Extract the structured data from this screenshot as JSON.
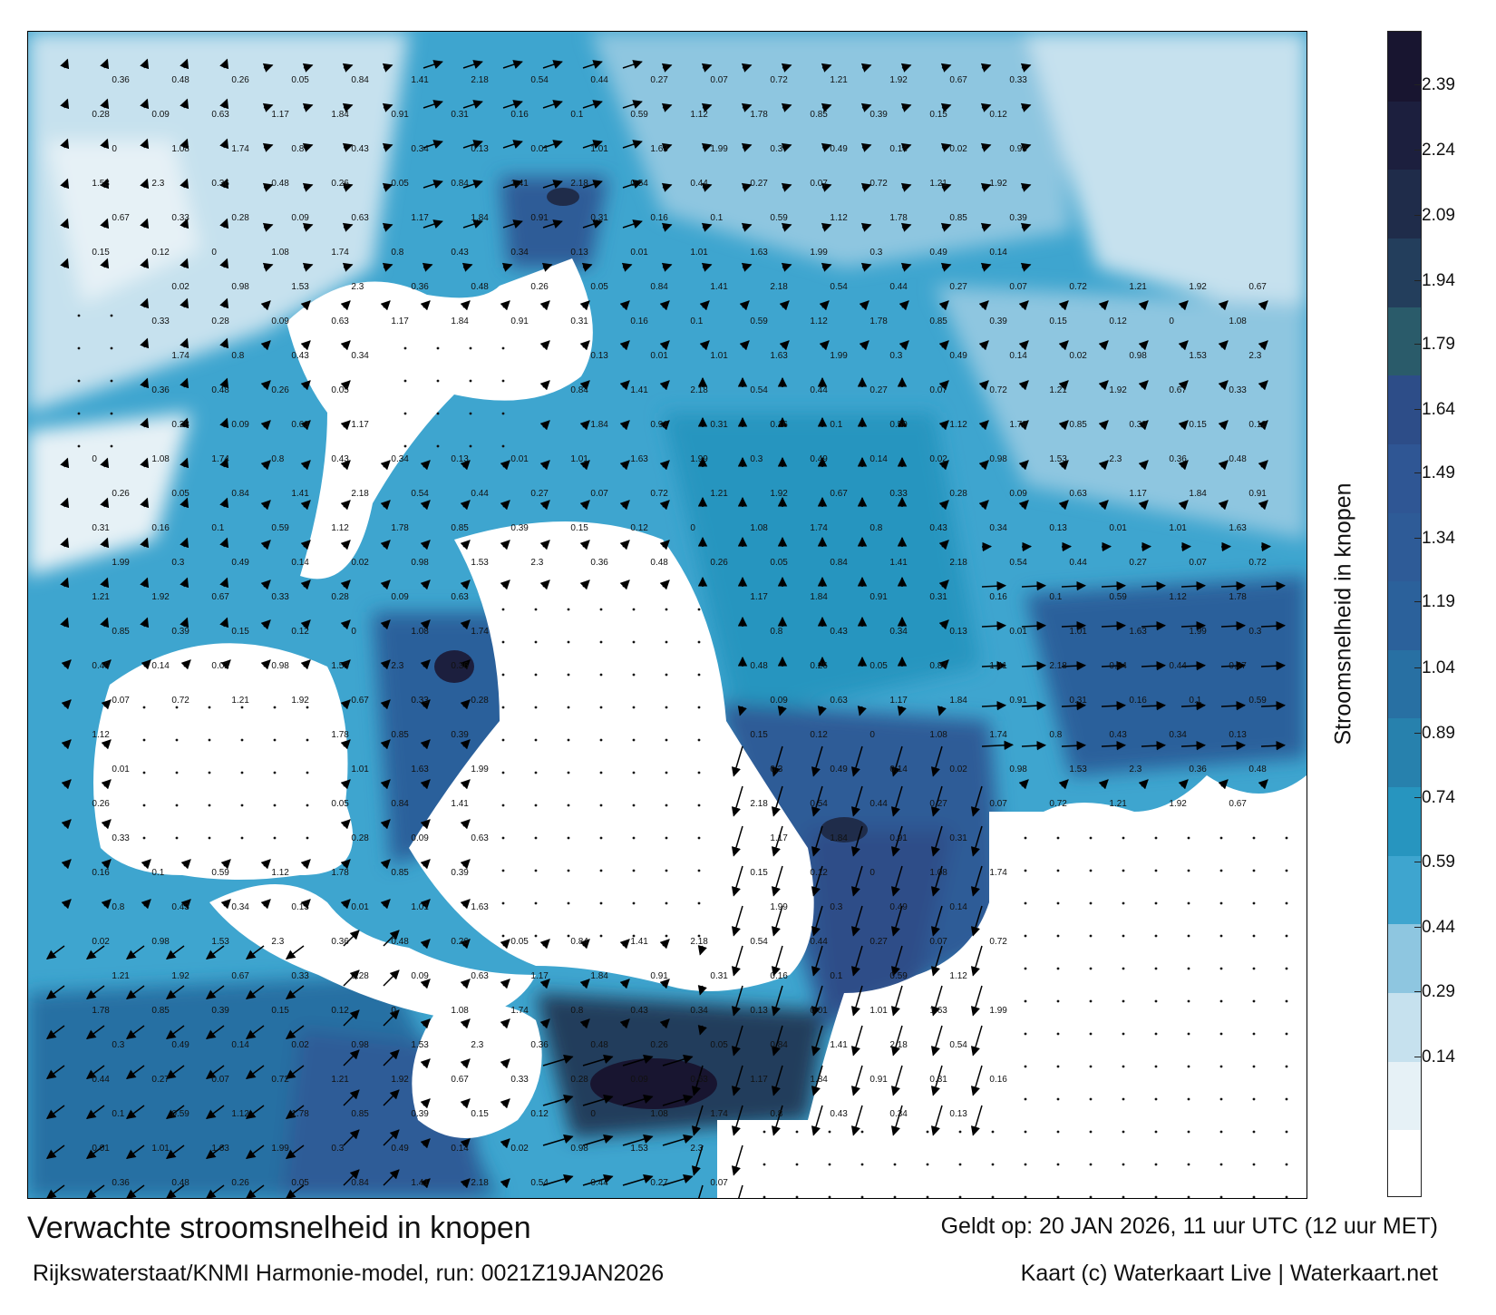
{
  "caption": {
    "title": "Verwachte stroomsnelheid in knopen",
    "model": "Rijkswaterstaat/KNMI Harmonie-model, run: 0021Z19JAN2026",
    "valid": "Geldt op: 20 JAN 2026, 11 uur UTC (12 uur MET)",
    "credit": "Kaart (c) Waterkaart Live | Waterkaart.net"
  },
  "legend": {
    "title": "Stroomsnelheid in knopen",
    "ticks": [
      "2.39",
      "2.24",
      "2.09",
      "1.94",
      "1.79",
      "1.64",
      "1.49",
      "1.34",
      "1.19",
      "1.04",
      "0.89",
      "0.74",
      "0.59",
      "0.44",
      "0.29",
      "0.14"
    ],
    "colors": {
      "c00": "#ffffff",
      "c01": "#e6f1f6",
      "c02": "#c6e1ee",
      "c03": "#8ec6e0",
      "c04": "#3ea5cf",
      "c05": "#2795bf",
      "c06": "#2781ad",
      "c07": "#2870a3",
      "c08": "#2b619b",
      "c09": "#2e5b97",
      "c10": "#2f5694",
      "c11": "#2d4d88",
      "c12": "#2a5b6a",
      "c13": "#233e5c",
      "c14": "#1f2c4a",
      "c15": "#1c1f3e",
      "c16": "#181530"
    },
    "land_color": "#ffffff"
  },
  "map": {
    "sample_values": [
      {
        "text": "0.36"
      },
      {
        "text": "0.3"
      },
      {
        "text": "0.43"
      },
      {
        "text": "0.39"
      },
      {
        "text": "0.31"
      },
      {
        "text": "0.33"
      },
      {
        "text": "0.44"
      },
      {
        "text": "0.48"
      },
      {
        "text": "0.49"
      },
      {
        "text": "0.34"
      },
      {
        "text": "0.15"
      },
      {
        "text": "0.16"
      },
      {
        "text": "0.28"
      },
      {
        "text": "0.27"
      },
      {
        "text": "0.26"
      },
      {
        "text": "0.14"
      },
      {
        "text": "0.13"
      },
      {
        "text": "0.12"
      },
      {
        "text": "0.1"
      },
      {
        "text": "0.09"
      },
      {
        "text": "0.07"
      },
      {
        "text": "0.05"
      },
      {
        "text": "0.02"
      },
      {
        "text": "0.01"
      },
      {
        "text": "0"
      },
      {
        "text": "0.59"
      },
      {
        "text": "0.63"
      },
      {
        "text": "0.72"
      },
      {
        "text": "0.84"
      },
      {
        "text": "0.98"
      },
      {
        "text": "1.01"
      },
      {
        "text": "1.08"
      },
      {
        "text": "1.12"
      },
      {
        "text": "1.17"
      },
      {
        "text": "1.21"
      },
      {
        "text": "1.41"
      },
      {
        "text": "1.53"
      },
      {
        "text": "1.63"
      },
      {
        "text": "1.74"
      },
      {
        "text": "1.78"
      },
      {
        "text": "1.84"
      },
      {
        "text": "1.92"
      },
      {
        "text": "2.18"
      },
      {
        "text": "2.3"
      },
      {
        "text": "1.99"
      },
      {
        "text": "0.8"
      },
      {
        "text": "0.85"
      },
      {
        "text": "0.91"
      },
      {
        "text": "0.67"
      },
      {
        "text": "0.54"
      }
    ]
  }
}
